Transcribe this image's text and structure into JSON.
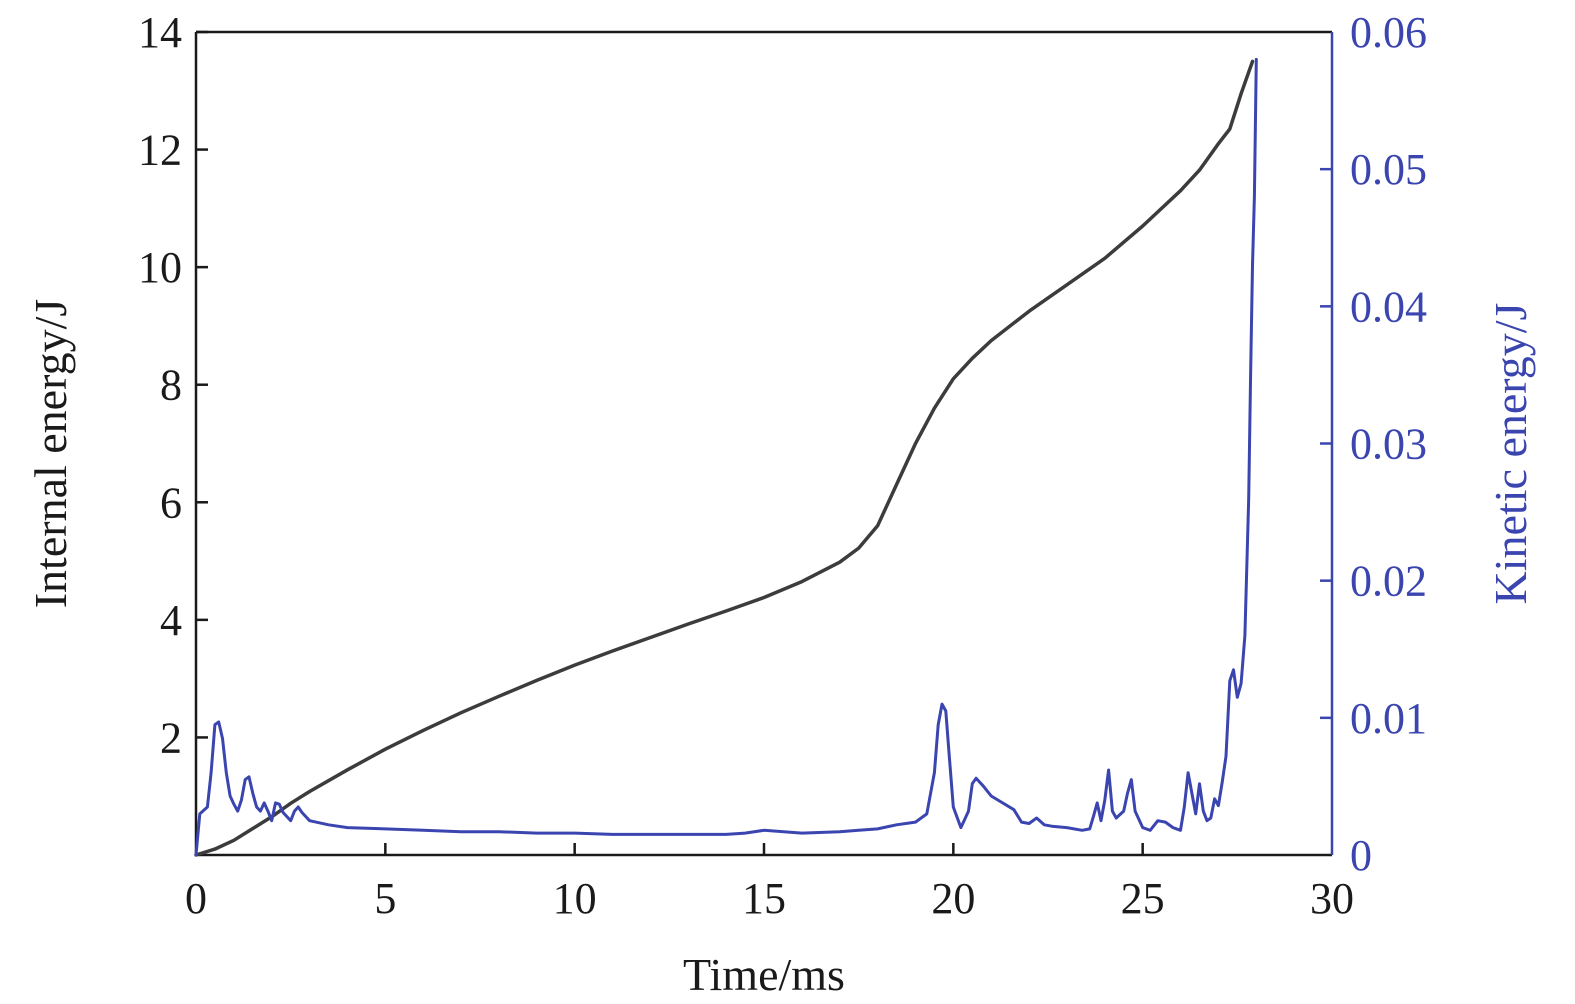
{
  "colors": {
    "internal": "#3c3c3c",
    "kinetic": "#3b45b0",
    "axis_left": "#1a1a1a",
    "axis_right": "#3b45b0"
  },
  "chart_data": {
    "type": "line",
    "title": "",
    "xlabel": "Time/ms",
    "ylabel_left": "Internal energy/J",
    "ylabel_right": "Kinetic energy/J",
    "xlim": [
      0,
      30
    ],
    "ylim_left": [
      0,
      14
    ],
    "ylim_right": [
      0,
      0.06
    ],
    "x_ticks": [
      "0",
      "5",
      "10",
      "15",
      "20",
      "25",
      "30"
    ],
    "y_left_ticks": [
      "2",
      "4",
      "6",
      "8",
      "10",
      "12",
      "14"
    ],
    "y_right_ticks": [
      "0",
      "0.01",
      "0.02",
      "0.03",
      "0.04",
      "0.05",
      "0.06"
    ],
    "grid": false,
    "series": [
      {
        "name": "Internal energy/J",
        "axis": "left",
        "x": [
          0,
          0.5,
          1.0,
          1.5,
          2.0,
          2.5,
          3.0,
          4.0,
          5.0,
          6.0,
          7.0,
          8.0,
          9.0,
          10.0,
          11.0,
          12.0,
          13.0,
          14.0,
          15.0,
          16.0,
          17.0,
          17.5,
          18.0,
          18.5,
          19.0,
          19.5,
          20.0,
          20.5,
          21.0,
          22.0,
          23.0,
          24.0,
          25.0,
          26.0,
          26.5,
          27.0,
          27.3,
          27.6,
          27.9
        ],
        "y": [
          0.0,
          0.1,
          0.25,
          0.45,
          0.65,
          0.88,
          1.08,
          1.45,
          1.8,
          2.12,
          2.42,
          2.7,
          2.97,
          3.23,
          3.47,
          3.7,
          3.93,
          4.15,
          4.38,
          4.65,
          4.98,
          5.22,
          5.6,
          6.3,
          7.0,
          7.6,
          8.1,
          8.45,
          8.75,
          9.25,
          9.7,
          10.15,
          10.7,
          11.3,
          11.65,
          12.1,
          12.35,
          12.95,
          13.5
        ]
      },
      {
        "name": "Kinetic energy/J",
        "axis": "right",
        "x": [
          0,
          0.1,
          0.3,
          0.4,
          0.5,
          0.6,
          0.7,
          0.8,
          0.9,
          1.0,
          1.1,
          1.2,
          1.3,
          1.4,
          1.5,
          1.6,
          1.7,
          1.8,
          1.9,
          2.0,
          2.1,
          2.2,
          2.3,
          2.4,
          2.5,
          2.6,
          2.7,
          2.8,
          3.0,
          3.5,
          4.0,
          5.0,
          6.0,
          7.0,
          8.0,
          9.0,
          10.0,
          11.0,
          12.0,
          13.0,
          14.0,
          14.5,
          15.0,
          16.0,
          17.0,
          17.5,
          18.0,
          18.5,
          19.0,
          19.3,
          19.5,
          19.6,
          19.7,
          19.8,
          19.9,
          20.0,
          20.2,
          20.4,
          20.5,
          20.6,
          20.8,
          21.0,
          21.3,
          21.6,
          21.8,
          22.0,
          22.2,
          22.4,
          22.6,
          23.0,
          23.4,
          23.6,
          23.7,
          23.8,
          23.9,
          24.0,
          24.1,
          24.2,
          24.3,
          24.5,
          24.6,
          24.7,
          24.8,
          25.0,
          25.2,
          25.4,
          25.6,
          25.8,
          26.0,
          26.1,
          26.2,
          26.3,
          26.4,
          26.5,
          26.6,
          26.7,
          26.8,
          26.9,
          27.0,
          27.1,
          27.2,
          27.3,
          27.4,
          27.5,
          27.6,
          27.7,
          27.8,
          27.85,
          27.9,
          27.95,
          28.0
        ],
        "y": [
          0.0,
          0.003,
          0.0035,
          0.006,
          0.0095,
          0.0097,
          0.0085,
          0.006,
          0.0043,
          0.0037,
          0.0032,
          0.004,
          0.0055,
          0.0057,
          0.0045,
          0.0035,
          0.0032,
          0.0038,
          0.0032,
          0.0025,
          0.0038,
          0.0037,
          0.0031,
          0.0028,
          0.0025,
          0.0032,
          0.0035,
          0.0031,
          0.0025,
          0.0022,
          0.002,
          0.0019,
          0.0018,
          0.0017,
          0.0017,
          0.0016,
          0.0016,
          0.0015,
          0.0015,
          0.0015,
          0.0015,
          0.0016,
          0.0018,
          0.0016,
          0.0017,
          0.0018,
          0.0019,
          0.0022,
          0.0024,
          0.003,
          0.006,
          0.0095,
          0.011,
          0.0105,
          0.007,
          0.0035,
          0.002,
          0.0032,
          0.0052,
          0.0056,
          0.005,
          0.0043,
          0.0038,
          0.0033,
          0.0024,
          0.0023,
          0.0027,
          0.0022,
          0.0021,
          0.002,
          0.0018,
          0.0019,
          0.0028,
          0.0038,
          0.0025,
          0.004,
          0.0062,
          0.0032,
          0.0027,
          0.0032,
          0.0045,
          0.0055,
          0.0032,
          0.002,
          0.0018,
          0.0025,
          0.0024,
          0.002,
          0.0018,
          0.0035,
          0.006,
          0.0045,
          0.003,
          0.0052,
          0.0032,
          0.0025,
          0.0027,
          0.0041,
          0.0036,
          0.0053,
          0.0072,
          0.0127,
          0.0135,
          0.0115,
          0.0125,
          0.016,
          0.026,
          0.035,
          0.043,
          0.048,
          0.058
        ]
      }
    ]
  }
}
